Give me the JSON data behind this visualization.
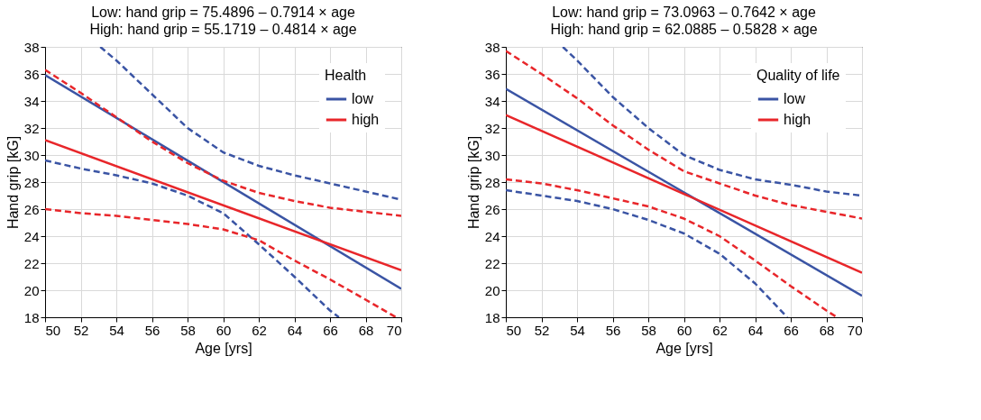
{
  "chart_data": [
    {
      "type": "line",
      "title": "Low: hand grip = 75.4896 – 0.7914 × age",
      "subtitle": "High: hand grip = 55.1719 – 0.4814 × age",
      "xlabel": "Age [yrs]",
      "ylabel": "Hand grip [kG]",
      "legend_title": "Health",
      "xlim": [
        50,
        70
      ],
      "ylim": [
        18,
        38
      ],
      "xticks": [
        50,
        52,
        54,
        56,
        58,
        60,
        62,
        64,
        66,
        68,
        70
      ],
      "yticks": [
        18,
        20,
        22,
        24,
        26,
        28,
        30,
        32,
        34,
        36,
        38
      ],
      "grid": true,
      "legend": "top right",
      "marker": "none",
      "series": [
        {
          "name": "low",
          "color": "#3a54a4",
          "x": [
            50,
            70
          ],
          "values": [
            35.92,
            20.1
          ]
        },
        {
          "name": "high",
          "color": "#e8262a",
          "x": [
            50,
            70
          ],
          "values": [
            31.1,
            21.47
          ]
        },
        {
          "color": "#3a54a4",
          "line_style": "dashed",
          "x": [
            53.1,
            54,
            56,
            58,
            60,
            62,
            64,
            66,
            68,
            70
          ],
          "values": [
            38,
            37,
            34.5,
            32,
            30.2,
            29.2,
            28.5,
            27.9,
            27.3,
            26.7
          ]
        },
        {
          "color": "#3a54a4",
          "line_style": "dashed",
          "x": [
            50,
            52,
            54,
            56,
            58,
            60,
            62,
            64,
            66,
            66.5
          ],
          "values": [
            29.6,
            29.0,
            28.5,
            27.9,
            27.0,
            25.7,
            23.4,
            21.0,
            18.5,
            18
          ]
        },
        {
          "color": "#e8262a",
          "line_style": "dashed",
          "x": [
            50,
            52,
            54,
            56,
            58,
            60,
            62,
            64,
            66,
            68,
            70
          ],
          "values": [
            36.3,
            34.6,
            32.8,
            31.0,
            29.4,
            28.1,
            27.2,
            26.6,
            26.1,
            25.8,
            25.5
          ]
        },
        {
          "color": "#e8262a",
          "line_style": "dashed",
          "x": [
            50,
            52,
            54,
            56,
            58,
            60,
            62,
            64,
            66,
            68,
            69.7
          ],
          "values": [
            26.0,
            25.7,
            25.5,
            25.2,
            24.9,
            24.5,
            23.7,
            22.2,
            20.8,
            19.3,
            18
          ]
        }
      ]
    },
    {
      "type": "line",
      "title": "Low: hand grip = 73.0963 – 0.7642 × age",
      "subtitle": "High: hand grip = 62.0885 – 0.5828 × age",
      "xlabel": "Age [yrs]",
      "ylabel": "Hand grip [kG]",
      "legend_title": "Quality of life",
      "xlim": [
        50,
        70
      ],
      "ylim": [
        18,
        38
      ],
      "xticks": [
        50,
        52,
        54,
        56,
        58,
        60,
        62,
        64,
        66,
        68,
        70
      ],
      "yticks": [
        18,
        20,
        22,
        24,
        26,
        28,
        30,
        32,
        34,
        36,
        38
      ],
      "grid": true,
      "legend": "top right",
      "marker": "none",
      "series": [
        {
          "name": "low",
          "color": "#3a54a4",
          "x": [
            50,
            70
          ],
          "values": [
            34.89,
            19.59
          ]
        },
        {
          "name": "high",
          "color": "#e8262a",
          "x": [
            50,
            70
          ],
          "values": [
            32.95,
            21.29
          ]
        },
        {
          "color": "#3a54a4",
          "line_style": "dashed",
          "x": [
            53.2,
            54,
            56,
            58,
            60,
            62,
            64,
            66,
            68,
            70
          ],
          "values": [
            38,
            37,
            34.3,
            32,
            30,
            28.9,
            28.2,
            27.8,
            27.3,
            27.0
          ]
        },
        {
          "color": "#3a54a4",
          "line_style": "dashed",
          "x": [
            50,
            52,
            54,
            56,
            58,
            60,
            62,
            64,
            65.8
          ],
          "values": [
            27.4,
            27.0,
            26.6,
            26.0,
            25.2,
            24.2,
            22.7,
            20.5,
            18
          ]
        },
        {
          "color": "#e8262a",
          "line_style": "dashed",
          "x": [
            50,
            52,
            54,
            56,
            58,
            60,
            62,
            64,
            66,
            68,
            70
          ],
          "values": [
            37.7,
            36.0,
            34.2,
            32.2,
            30.4,
            28.8,
            27.9,
            27.0,
            26.3,
            25.8,
            25.3
          ]
        },
        {
          "color": "#e8262a",
          "line_style": "dashed",
          "x": [
            50,
            52,
            54,
            56,
            58,
            60,
            62,
            64,
            66,
            68,
            68.6
          ],
          "values": [
            28.2,
            27.9,
            27.4,
            26.8,
            26.2,
            25.3,
            24.0,
            22.2,
            20.3,
            18.5,
            18
          ]
        }
      ]
    }
  ]
}
